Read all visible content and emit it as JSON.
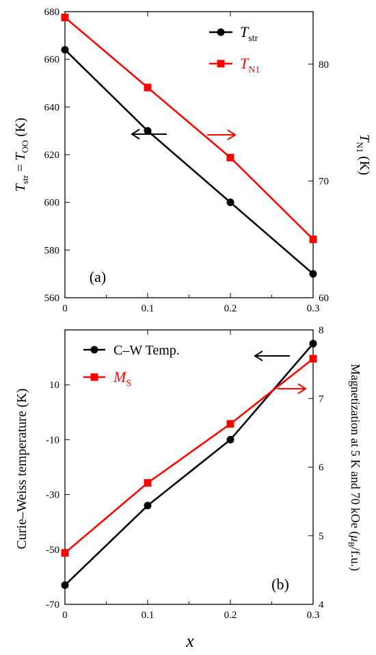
{
  "chart_data": [
    {
      "type": "line",
      "panel_label": "(a)",
      "x": [
        0,
        0.1,
        0.2,
        0.3
      ],
      "x_ticks": [
        "0",
        "0.1",
        "0.2",
        "0.3"
      ],
      "xlim": [
        0,
        0.3
      ],
      "ylabel_left": "T_str = T_OO (K)",
      "ylabel_right": "T_N1 (K)",
      "ylim_left": [
        560,
        680
      ],
      "ylim_right": [
        60,
        84.5
      ],
      "y_ticks_left": [
        "560",
        "580",
        "600",
        "620",
        "640",
        "660",
        "680"
      ],
      "y_ticks_right": [
        "60",
        "70",
        "80"
      ],
      "series": [
        {
          "name": "T_str",
          "axis": "left",
          "marker": "circle",
          "color": "#000000",
          "values": [
            664,
            630,
            600,
            570
          ]
        },
        {
          "name": "T_N1",
          "axis": "right",
          "marker": "square",
          "color": "#ff0000",
          "values": [
            84,
            78,
            72,
            65
          ]
        }
      ],
      "legend_placement": "top-right",
      "grid": false
    },
    {
      "type": "line",
      "panel_label": "(b)",
      "x": [
        0,
        0.1,
        0.2,
        0.3
      ],
      "x_ticks": [
        "0",
        "0.1",
        "0.2",
        "0.3"
      ],
      "xlim": [
        0,
        0.3
      ],
      "xlabel": "x",
      "ylabel_left": "Curie–Weiss temperature (K)",
      "ylabel_right": "Magnetization at 5 K and 70 kOe (μB/f.u.)",
      "ylim_left": [
        -70,
        30
      ],
      "ylim_right": [
        4,
        8
      ],
      "y_ticks_left": [
        "-70",
        "-50",
        "-30",
        "-10",
        "10"
      ],
      "y_ticks_right": [
        "4",
        "5",
        "6",
        "7",
        "8"
      ],
      "series": [
        {
          "name": "C–W Temp.",
          "axis": "left",
          "marker": "circle",
          "color": "#000000",
          "values": [
            -63,
            -34,
            -10,
            25
          ]
        },
        {
          "name": "M_S",
          "axis": "right",
          "marker": "square",
          "color": "#ff0000",
          "values": [
            4.75,
            5.77,
            6.63,
            7.58
          ]
        }
      ],
      "legend_placement": "top-left",
      "grid": false
    }
  ]
}
